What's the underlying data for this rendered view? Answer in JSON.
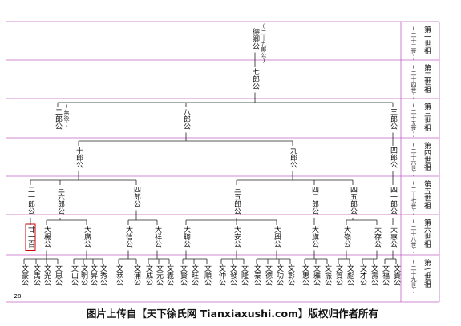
{
  "generations": [
    {
      "label": "第一世祖",
      "note": "(二十三世)"
    },
    {
      "label": "第二世祖",
      "note": "(二十四世)"
    },
    {
      "label": "第三世祖",
      "note": "(二十五世)"
    },
    {
      "label": "第四世祖",
      "note": "(二十六世)"
    },
    {
      "label": "第五世祖",
      "note": "(二十七世)"
    },
    {
      "label": "第六世祖",
      "note": "(二十八世)"
    },
    {
      "label": "第七世祖",
      "note": "(二十九世)"
    }
  ],
  "rows": [
    {
      "nodes": [
        {
          "name": "德卿公",
          "note": "(二十九郎公)"
        }
      ]
    },
    {
      "nodes": [
        {
          "name": "七郎公"
        }
      ]
    },
    {
      "nodes": [
        {
          "name": "二郎公",
          "note": "(無後)"
        },
        {
          "name": "八郎公"
        },
        {
          "name": "三郎公"
        }
      ]
    },
    {
      "nodes": [
        {
          "name": "十郎公"
        },
        {
          "name": "九郎公"
        },
        {
          "name": "四郎公"
        }
      ]
    },
    {
      "nodes": [
        {
          "name": "二一郎公"
        },
        {
          "name": "三六郎公"
        },
        {
          "name": "四郎公"
        },
        {
          "name": "三五郎公"
        },
        {
          "name": "四二郎公"
        },
        {
          "name": "四五郎公"
        },
        {
          "name": "四一郎公"
        }
      ]
    },
    {
      "nodes": [
        {
          "name": "廿一百"
        },
        {
          "name": "大楊公"
        },
        {
          "name": "大廣公"
        },
        {
          "name": "大信公"
        },
        {
          "name": "大祥公"
        },
        {
          "name": "大聰公"
        },
        {
          "name": "大安公"
        },
        {
          "name": "大興公"
        },
        {
          "name": "大旗公"
        },
        {
          "name": "大嶺公"
        },
        {
          "name": "大存公"
        },
        {
          "name": "大惠公"
        }
      ]
    },
    {
      "nodes": [
        {
          "name": "文豪公"
        },
        {
          "name": "文禹公"
        },
        {
          "name": "文光公"
        },
        {
          "name": "文思公"
        },
        {
          "name": "文山公"
        },
        {
          "name": "文明公"
        },
        {
          "name": "文昇公"
        },
        {
          "name": "文秀公"
        },
        {
          "name": "文恭公"
        },
        {
          "name": "文浦公"
        },
        {
          "name": "文成公"
        },
        {
          "name": "文元公"
        },
        {
          "name": "文義公"
        },
        {
          "name": "文賢公"
        },
        {
          "name": "文旺公"
        },
        {
          "name": "文順公"
        },
        {
          "name": "文仲公"
        },
        {
          "name": "文發公"
        },
        {
          "name": "文隆公"
        },
        {
          "name": "文泰公"
        },
        {
          "name": "文德公"
        },
        {
          "name": "文功公"
        },
        {
          "name": "文彰公"
        },
        {
          "name": "文惠公"
        },
        {
          "name": "文雅公"
        },
        {
          "name": "文振公"
        },
        {
          "name": "文質公"
        },
        {
          "name": "文彪公"
        },
        {
          "name": "文才公"
        },
        {
          "name": "文壽公"
        },
        {
          "name": "文福公"
        },
        {
          "name": "文貴公"
        }
      ]
    }
  ],
  "page_number": "28",
  "caption": "图片上传自【天下徐氏网 Tianxiaxushi.com】版权归作者所有"
}
